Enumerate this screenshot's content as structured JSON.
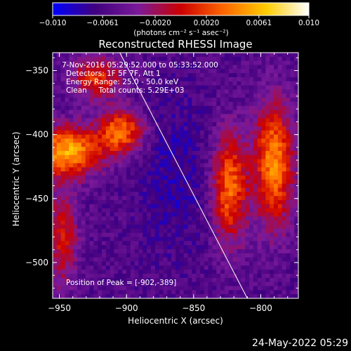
{
  "chart_data": {
    "type": "heatmap",
    "title": "Reconstructed RHESSI Image",
    "xlabel": "Heliocentric X (arcsec)",
    "ylabel": "Heliocentric Y (arcsec)",
    "xlim": [
      -955,
      -772
    ],
    "ylim": [
      -528,
      -336
    ],
    "x_ticks": [
      -950,
      -900,
      -850,
      -800
    ],
    "x_tick_labels": [
      "-950",
      "-900",
      "-850",
      "-800"
    ],
    "y_ticks": [
      -350,
      -400,
      -450,
      -500
    ],
    "y_tick_labels": [
      "-350",
      "-400",
      "-450",
      "-500"
    ],
    "colorbar": {
      "range": [
        -0.01,
        0.01
      ],
      "ticks": [
        -0.01,
        -0.0061,
        -0.002,
        0.002,
        0.0061,
        0.01
      ],
      "tick_labels": [
        "-0.010",
        "-0.0061",
        "-0.0020",
        "0.0020",
        "0.0061",
        "0.010"
      ],
      "unit_label": "(photons cm⁻² s⁻¹ asec⁻²)",
      "colors": [
        "#0000ff",
        "#40007f",
        "#7a1a9a",
        "#cc0000",
        "#ff6600",
        "#ffcc00",
        "#ffffff"
      ]
    },
    "limb_line": [
      [
        -905,
        -336
      ],
      [
        -810,
        -528
      ]
    ],
    "grid": false,
    "legend": "none"
  },
  "annotations": {
    "time": "7-Nov-2016 05:29:52.000 to 05:33:52.000",
    "detectors": "Detectors: 1F 5F 7F, Att 1",
    "energy": "Energy Range: 25.0 - 50.0 keV",
    "clean": "Clean     Total counts: 5.29E+03",
    "peak": "Position of Peak = [-902,-389]"
  },
  "timestamp": "24-May-2022 05:29"
}
